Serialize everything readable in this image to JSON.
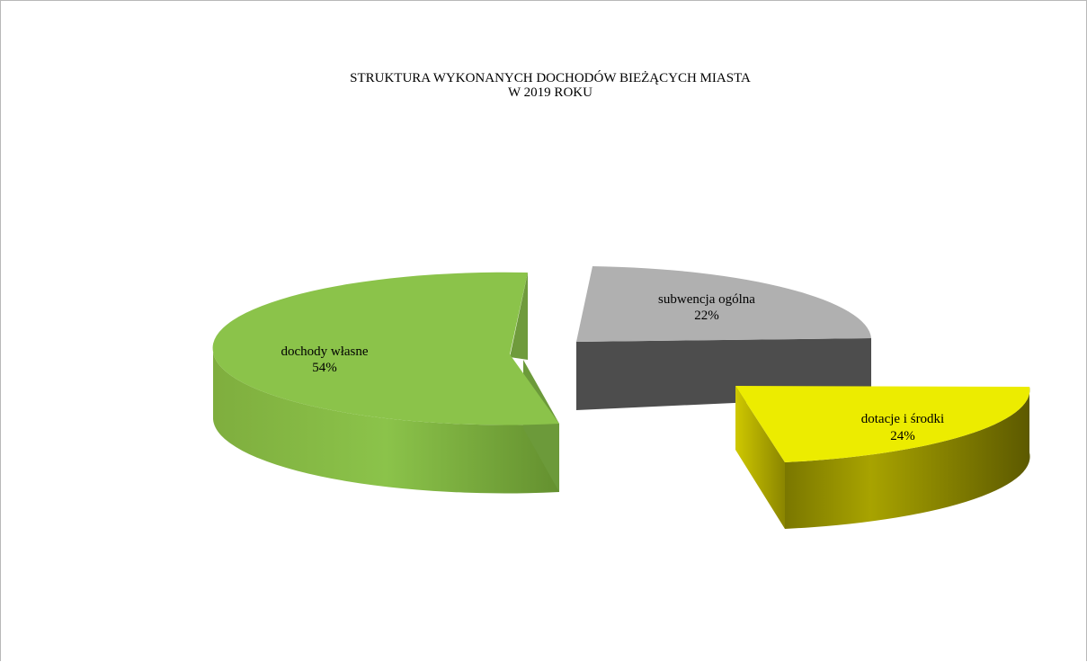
{
  "chart_data": {
    "type": "pie",
    "style": "3d-exploded",
    "title_line1": "STRUKTURA WYKONANYCH DOCHODÓW BIEŻĄCYCH MIASTA",
    "title_line2": "W 2019 ROKU",
    "slices": [
      {
        "name": "dochody własne",
        "value": 54,
        "label": "54%",
        "color": "#8bc34a"
      },
      {
        "name": "subwencja ogólna",
        "value": 22,
        "label": "22%",
        "color": "#b0b0b0"
      },
      {
        "name": "dotacje i środki",
        "value": 24,
        "label": "24%",
        "color": "#ecec00"
      }
    ],
    "legend": "none"
  }
}
